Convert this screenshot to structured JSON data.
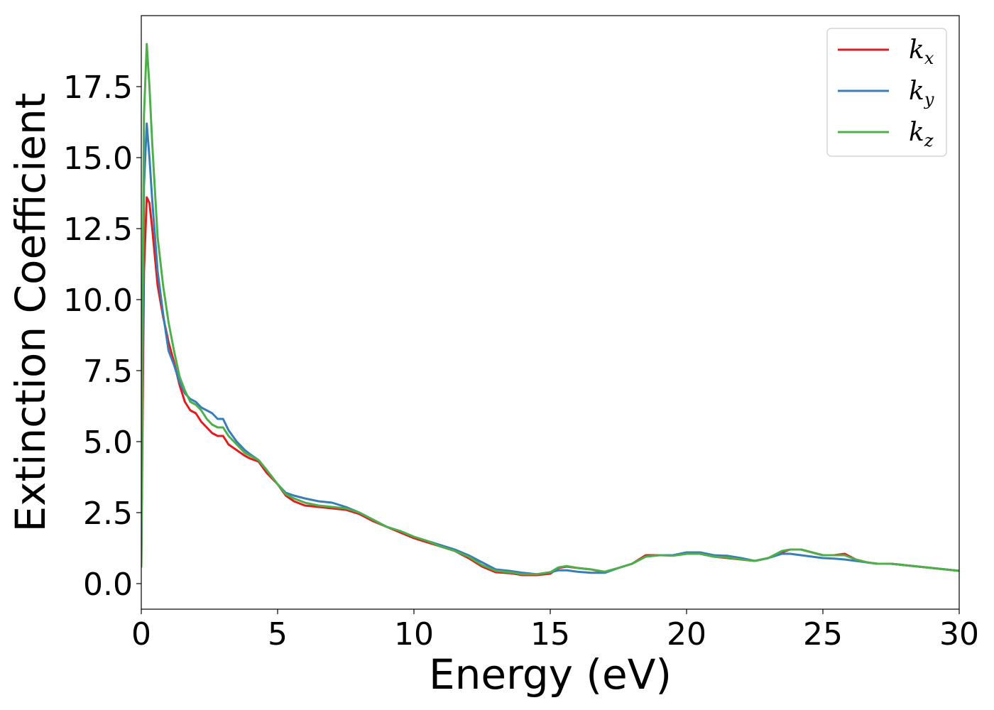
{
  "chart_data": {
    "type": "line",
    "xlabel": "Energy (eV)",
    "ylabel": "Extinction Coefficient",
    "xlim": [
      0,
      30
    ],
    "ylim": [
      -0.9,
      20.0
    ],
    "xticks": [
      0,
      5,
      10,
      15,
      20,
      25,
      30
    ],
    "xtick_labels": [
      "0",
      "5",
      "10",
      "15",
      "20",
      "25",
      "30"
    ],
    "yticks": [
      0.0,
      2.5,
      5.0,
      7.5,
      10.0,
      12.5,
      15.0,
      17.5
    ],
    "ytick_labels": [
      "0.0",
      "2.5",
      "5.0",
      "7.5",
      "10.0",
      "12.5",
      "15.0",
      "17.5"
    ],
    "grid": false,
    "legend_position": "top-right",
    "series": [
      {
        "name": "k_x",
        "label_base": "k",
        "label_sub": "x",
        "color": "#e41a1c",
        "x": [
          0,
          0.05,
          0.1,
          0.2,
          0.3,
          0.4,
          0.6,
          0.8,
          1.0,
          1.2,
          1.4,
          1.6,
          1.8,
          2.0,
          2.2,
          2.4,
          2.6,
          2.8,
          3.0,
          3.2,
          3.5,
          3.8,
          4.0,
          4.3,
          4.6,
          5.0,
          5.3,
          5.6,
          6.0,
          6.5,
          7.0,
          7.5,
          8.0,
          8.5,
          9.0,
          9.5,
          10.0,
          10.5,
          11.0,
          11.5,
          12.0,
          12.5,
          13.0,
          13.5,
          14.0,
          14.5,
          15.0,
          15.3,
          15.6,
          16.0,
          16.5,
          17.0,
          17.5,
          18.0,
          18.5,
          19.0,
          19.5,
          20.0,
          20.5,
          21.0,
          21.5,
          22.0,
          22.5,
          23.0,
          23.5,
          23.8,
          24.2,
          24.6,
          25.0,
          25.4,
          25.8,
          26.2,
          26.6,
          27.0,
          27.5,
          28.0,
          28.5,
          29.0,
          29.5,
          30.0
        ],
        "values": [
          0.6,
          6.0,
          11.0,
          13.6,
          13.4,
          12.5,
          10.5,
          9.4,
          8.5,
          7.8,
          7.0,
          6.4,
          6.1,
          6.0,
          5.7,
          5.5,
          5.3,
          5.2,
          5.2,
          4.9,
          4.7,
          4.5,
          4.4,
          4.3,
          3.9,
          3.5,
          3.1,
          2.9,
          2.75,
          2.7,
          2.65,
          2.6,
          2.45,
          2.2,
          2.0,
          1.8,
          1.6,
          1.45,
          1.3,
          1.15,
          0.9,
          0.6,
          0.4,
          0.37,
          0.3,
          0.3,
          0.35,
          0.55,
          0.6,
          0.55,
          0.5,
          0.4,
          0.55,
          0.7,
          1.0,
          1.0,
          1.0,
          1.05,
          1.05,
          0.95,
          0.9,
          0.85,
          0.8,
          0.9,
          1.1,
          1.2,
          1.2,
          1.1,
          1.0,
          1.0,
          1.05,
          0.85,
          0.75,
          0.7,
          0.7,
          0.65,
          0.6,
          0.55,
          0.5,
          0.45
        ]
      },
      {
        "name": "k_y",
        "label_base": "k",
        "label_sub": "y",
        "color": "#377eb8",
        "x": [
          0,
          0.05,
          0.1,
          0.2,
          0.3,
          0.4,
          0.6,
          0.8,
          1.0,
          1.2,
          1.4,
          1.6,
          1.8,
          2.0,
          2.2,
          2.4,
          2.6,
          2.8,
          3.0,
          3.2,
          3.5,
          3.8,
          4.0,
          4.3,
          4.6,
          5.0,
          5.3,
          5.6,
          6.0,
          6.5,
          7.0,
          7.5,
          8.0,
          8.5,
          9.0,
          9.5,
          10.0,
          10.5,
          11.0,
          11.5,
          12.0,
          12.5,
          13.0,
          13.5,
          14.0,
          14.5,
          15.0,
          15.3,
          15.6,
          16.0,
          16.5,
          17.0,
          17.5,
          18.0,
          18.5,
          19.0,
          19.5,
          20.0,
          20.5,
          21.0,
          21.5,
          22.0,
          22.5,
          23.0,
          23.5,
          23.8,
          24.2,
          24.6,
          25.0,
          25.4,
          25.8,
          26.2,
          26.6,
          27.0,
          27.5,
          28.0,
          28.5,
          29.0,
          29.5,
          30.0
        ],
        "values": [
          0.6,
          8.0,
          14.0,
          16.2,
          15.0,
          13.5,
          11.0,
          9.5,
          8.2,
          7.7,
          7.1,
          6.7,
          6.5,
          6.4,
          6.2,
          6.1,
          6.0,
          5.8,
          5.8,
          5.4,
          5.0,
          4.7,
          4.55,
          4.35,
          4.0,
          3.5,
          3.2,
          3.1,
          3.0,
          2.9,
          2.85,
          2.7,
          2.5,
          2.25,
          2.0,
          1.85,
          1.65,
          1.5,
          1.35,
          1.2,
          1.0,
          0.75,
          0.5,
          0.45,
          0.38,
          0.33,
          0.4,
          0.47,
          0.47,
          0.42,
          0.38,
          0.38,
          0.55,
          0.7,
          0.95,
          1.0,
          1.0,
          1.1,
          1.1,
          1.0,
          0.98,
          0.9,
          0.8,
          0.9,
          1.05,
          1.05,
          1.0,
          0.95,
          0.9,
          0.88,
          0.85,
          0.8,
          0.75,
          0.7,
          0.7,
          0.65,
          0.6,
          0.55,
          0.5,
          0.45
        ]
      },
      {
        "name": "k_z",
        "label_base": "k",
        "label_sub": "z",
        "color": "#4daf4a",
        "x": [
          0,
          0.05,
          0.1,
          0.2,
          0.3,
          0.4,
          0.6,
          0.8,
          1.0,
          1.2,
          1.4,
          1.6,
          1.8,
          2.0,
          2.2,
          2.4,
          2.6,
          2.8,
          3.0,
          3.2,
          3.5,
          3.8,
          4.0,
          4.3,
          4.6,
          5.0,
          5.3,
          5.6,
          6.0,
          6.5,
          7.0,
          7.5,
          8.0,
          8.5,
          9.0,
          9.5,
          10.0,
          10.5,
          11.0,
          11.5,
          12.0,
          12.5,
          13.0,
          13.5,
          14.0,
          14.5,
          15.0,
          15.3,
          15.6,
          16.0,
          16.5,
          17.0,
          17.5,
          18.0,
          18.5,
          19.0,
          19.5,
          20.0,
          20.5,
          21.0,
          21.5,
          22.0,
          22.5,
          23.0,
          23.5,
          23.8,
          24.2,
          24.6,
          25.0,
          25.4,
          25.8,
          26.2,
          26.6,
          27.0,
          27.5,
          28.0,
          28.5,
          29.0,
          29.5,
          30.0
        ],
        "values": [
          0.6,
          10.0,
          16.5,
          19.0,
          17.5,
          15.5,
          12.2,
          10.5,
          9.2,
          8.2,
          7.3,
          6.8,
          6.4,
          6.3,
          6.1,
          5.8,
          5.6,
          5.5,
          5.5,
          5.2,
          4.9,
          4.6,
          4.5,
          4.35,
          4.0,
          3.5,
          3.15,
          3.0,
          2.85,
          2.75,
          2.7,
          2.65,
          2.5,
          2.25,
          2.0,
          1.85,
          1.65,
          1.5,
          1.3,
          1.15,
          0.95,
          0.65,
          0.45,
          0.4,
          0.33,
          0.33,
          0.4,
          0.57,
          0.62,
          0.55,
          0.5,
          0.42,
          0.55,
          0.7,
          0.95,
          1.0,
          0.98,
          1.05,
          1.05,
          0.95,
          0.92,
          0.85,
          0.8,
          0.9,
          1.15,
          1.2,
          1.2,
          1.1,
          1.0,
          1.0,
          1.0,
          0.85,
          0.75,
          0.7,
          0.7,
          0.65,
          0.6,
          0.55,
          0.5,
          0.45
        ]
      }
    ]
  }
}
